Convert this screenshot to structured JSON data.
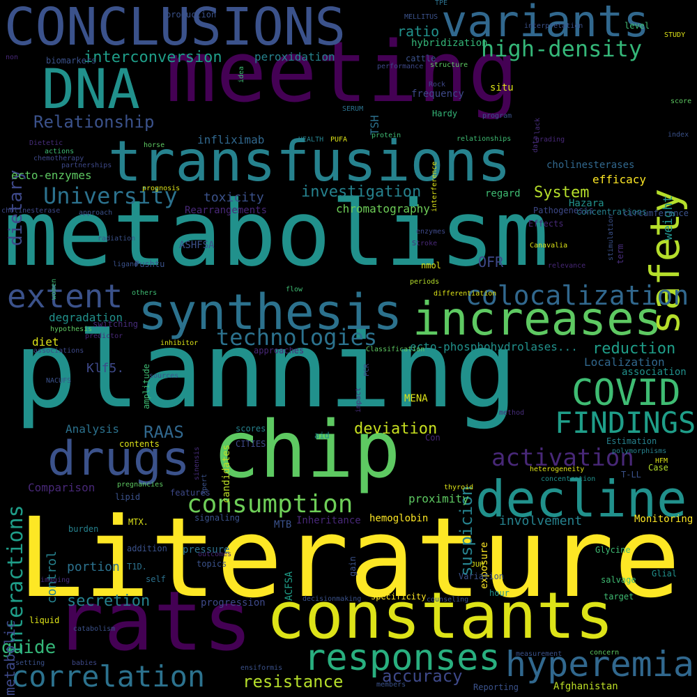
{
  "words": [
    {
      "text": "Literature",
      "color": "#fde725"
    },
    {
      "text": "planning",
      "color": "#21918c"
    },
    {
      "text": "metabolism",
      "color": "#21918c"
    },
    {
      "text": "meeting",
      "color": "#440154"
    },
    {
      "text": "chip",
      "color": "#5ec962"
    },
    {
      "text": "constants",
      "color": "#dde318"
    },
    {
      "text": "rats",
      "color": "#440154"
    },
    {
      "text": "transfusions",
      "color": "#26828e"
    },
    {
      "text": "increases",
      "color": "#5ec962"
    },
    {
      "text": "CONCLUSIONS",
      "color": "#3b528b"
    },
    {
      "text": "DNA",
      "color": "#21918c"
    },
    {
      "text": "decline",
      "color": "#21918c"
    },
    {
      "text": "synthesis",
      "color": "#2c728e"
    },
    {
      "text": "drugs",
      "color": "#3b528b"
    },
    {
      "text": "variants",
      "color": "#31688e"
    },
    {
      "text": "safety",
      "color": "#b5de2b"
    },
    {
      "text": "responses",
      "color": "#29af7f"
    },
    {
      "text": "hyperemia",
      "color": "#31688e"
    },
    {
      "text": "correlation",
      "color": "#2c728e"
    },
    {
      "text": "COVID",
      "color": "#3fbc73"
    },
    {
      "text": "FINDINGS",
      "color": "#1f9e89"
    },
    {
      "text": "extent",
      "color": "#3b528b"
    },
    {
      "text": "consumption",
      "color": "#6ece58"
    },
    {
      "text": "high-density",
      "color": "#35b779"
    },
    {
      "text": "colocalization",
      "color": "#31688e"
    },
    {
      "text": "activation",
      "color": "#482878"
    },
    {
      "text": "University",
      "color": "#2c728e"
    },
    {
      "text": "interactions",
      "color": "#1f9e89"
    },
    {
      "text": "technologies",
      "color": "#2c728e"
    },
    {
      "text": "dietary",
      "color": "#3e4989"
    },
    {
      "text": "Relationship",
      "color": "#3b528b"
    },
    {
      "text": "resistance",
      "color": "#b5de2b"
    },
    {
      "text": "accuracy",
      "color": "#3e4989"
    },
    {
      "text": "suspicion",
      "color": "#26828e"
    },
    {
      "text": "investigation",
      "color": "#26828e"
    },
    {
      "text": "interconversion",
      "color": "#1f9e89"
    },
    {
      "text": "secretion",
      "color": "#26828e"
    },
    {
      "text": "guide",
      "color": "#35b779"
    },
    {
      "text": "deviation",
      "color": "#c8e020"
    },
    {
      "text": "reduction",
      "color": "#1f9e89"
    },
    {
      "text": "System",
      "color": "#b5de2b"
    },
    {
      "text": "ratio",
      "color": "#21918c"
    },
    {
      "text": "involvement",
      "color": "#26828e"
    },
    {
      "text": "proximity",
      "color": "#5ec962"
    },
    {
      "text": "portion",
      "color": "#2c728e"
    },
    {
      "text": "RAAS",
      "color": "#31688e"
    },
    {
      "text": "weight",
      "color": "#21918c"
    },
    {
      "text": "metabolic",
      "color": "#3e4989"
    },
    {
      "text": "Localization",
      "color": "#31688e"
    },
    {
      "text": "Klf5.",
      "color": "#3e4989"
    },
    {
      "text": "OFR",
      "color": "#3e4989"
    },
    {
      "text": "degradation",
      "color": "#21918c"
    },
    {
      "text": "ecto-enzymes",
      "color": "#5ec962"
    },
    {
      "text": "toxicity",
      "color": "#3b528b"
    },
    {
      "text": "chromatography",
      "color": "#6ece58"
    },
    {
      "text": "hemoglobin",
      "color": "#fde725"
    },
    {
      "text": "Monitoring",
      "color": "#fde725"
    },
    {
      "text": "efficacy",
      "color": "#fde725"
    },
    {
      "text": "cholinesterases",
      "color": "#31688e"
    },
    {
      "text": "Hazara",
      "color": "#21918c"
    },
    {
      "text": "infliximab",
      "color": "#31688e"
    },
    {
      "text": "peroxidation",
      "color": "#26828e"
    },
    {
      "text": "frequency",
      "color": "#3e4989"
    },
    {
      "text": "ecto-phosphohydrolases...",
      "color": "#21918c"
    },
    {
      "text": "control",
      "color": "#26828e"
    },
    {
      "text": "Comparison",
      "color": "#482878"
    },
    {
      "text": "MENA",
      "color": "#dde318"
    },
    {
      "text": "diet",
      "color": "#dde318"
    },
    {
      "text": "Analysis",
      "color": "#2c728e"
    },
    {
      "text": "Afghanistan",
      "color": "#bddf26"
    },
    {
      "text": "candidates",
      "color": "#bddf26"
    },
    {
      "text": "TSH",
      "color": "#2c728e"
    },
    {
      "text": "pressure",
      "color": "#2c728e"
    },
    {
      "text": "association",
      "color": "#21918c"
    },
    {
      "text": "hybridization",
      "color": "#35b779"
    },
    {
      "text": "Rearrangements",
      "color": "#482878"
    },
    {
      "text": "regard",
      "color": "#3fbc73"
    },
    {
      "text": "situ",
      "color": "#dde318"
    },
    {
      "text": "Hardy",
      "color": "#35b779"
    },
    {
      "text": "progression",
      "color": "#3e4989"
    },
    {
      "text": "specificity",
      "color": "#fde725"
    },
    {
      "text": "ACFSA",
      "color": "#1f9e89"
    },
    {
      "text": "Estimation",
      "color": "#26828e"
    },
    {
      "text": "Inheritance",
      "color": "#482878"
    },
    {
      "text": "MTB",
      "color": "#3b528b"
    },
    {
      "text": "Case",
      "color": "#b5de2b"
    },
    {
      "text": "Glycine",
      "color": "#3fbc73"
    },
    {
      "text": "salvage",
      "color": "#3fbc73"
    },
    {
      "text": "target",
      "color": "#3fbc73"
    },
    {
      "text": "Reporting",
      "color": "#3b528b"
    },
    {
      "text": "exposure",
      "color": "#fde725"
    },
    {
      "text": "ASHFSA",
      "color": "#3b528b"
    },
    {
      "text": "concentrations",
      "color": "#26828e"
    },
    {
      "text": "Pathogenesis",
      "color": "#3e4989"
    },
    {
      "text": "Effects",
      "color": "#482878"
    },
    {
      "text": "circumference",
      "color": "#3b528b"
    },
    {
      "text": "term",
      "color": "#472d7b"
    },
    {
      "text": "Canavalia",
      "color": "#dde318"
    },
    {
      "text": "nmol",
      "color": "#dde318"
    },
    {
      "text": "Pushtu",
      "color": "#3b528b"
    },
    {
      "text": "Con",
      "color": "#482878"
    },
    {
      "text": "aid",
      "color": "#21918c"
    },
    {
      "text": "contents",
      "color": "#dde318"
    },
    {
      "text": "features",
      "color": "#3e4989"
    },
    {
      "text": "lipid",
      "color": "#3b528b"
    },
    {
      "text": "signaling",
      "color": "#3b528b"
    },
    {
      "text": "burden",
      "color": "#26828e"
    },
    {
      "text": "addition",
      "color": "#3b528b"
    },
    {
      "text": "T1D.",
      "color": "#2c728e"
    },
    {
      "text": "self",
      "color": "#2c728e"
    },
    {
      "text": "topics",
      "color": "#3b528b"
    },
    {
      "text": "outcomes",
      "color": "#482878"
    },
    {
      "text": "gain",
      "color": "#3b528b"
    },
    {
      "text": "JUH",
      "color": "#dde318"
    },
    {
      "text": "hour",
      "color": "#21918c"
    },
    {
      "text": "Variation",
      "color": "#3b528b"
    },
    {
      "text": "Glial",
      "color": "#21918c"
    },
    {
      "text": "HFM",
      "color": "#dde318"
    },
    {
      "text": "T-LL",
      "color": "#3b528b"
    },
    {
      "text": "polymorphisms",
      "color": "#26828e"
    },
    {
      "text": "heterogeneity",
      "color": "#dde318"
    },
    {
      "text": "concentration",
      "color": "#21918c"
    },
    {
      "text": "thyroid",
      "color": "#dde318"
    },
    {
      "text": "MTX.",
      "color": "#dde318"
    },
    {
      "text": "scores",
      "color": "#26828e"
    },
    {
      "text": "CITIES",
      "color": "#3e4989"
    },
    {
      "text": "sinensis",
      "color": "#472d7b"
    },
    {
      "text": "Xpert",
      "color": "#3b528b"
    },
    {
      "text": "pregnancies",
      "color": "#5ec962"
    },
    {
      "text": "sources",
      "color": "#3b528b"
    },
    {
      "text": "amplitude",
      "color": "#3fbc73"
    },
    {
      "text": "inhibitor",
      "color": "#dde318"
    },
    {
      "text": "switching",
      "color": "#472d7b"
    },
    {
      "text": "predictor",
      "color": "#482878"
    },
    {
      "text": "associations",
      "color": "#3e4989"
    },
    {
      "text": "hypothesis",
      "color": "#5ec962"
    },
    {
      "text": "others",
      "color": "#3fbc73"
    },
    {
      "text": "flow",
      "color": "#3fbc73"
    },
    {
      "text": "periods",
      "color": "#b5de2b"
    },
    {
      "text": "differentiation",
      "color": "#dde318"
    },
    {
      "text": "approaches",
      "color": "#482878"
    },
    {
      "text": "Classification",
      "color": "#5ec962"
    },
    {
      "text": "ligand",
      "color": "#3b528b"
    },
    {
      "text": "radiation",
      "color": "#3b528b"
    },
    {
      "text": "approach",
      "color": "#3b528b"
    },
    {
      "text": "cholinesterase",
      "color": "#3e4989"
    },
    {
      "text": "prognosis",
      "color": "#dde318"
    },
    {
      "text": "partnerships",
      "color": "#3e4989"
    },
    {
      "text": "chemotherapy",
      "color": "#3e4989"
    },
    {
      "text": "actions",
      "color": "#3fbc73"
    },
    {
      "text": "Dietetic",
      "color": "#472d7b"
    },
    {
      "text": "horse",
      "color": "#5ec962"
    },
    {
      "text": "biomarkers",
      "color": "#3b528b"
    },
    {
      "text": "non",
      "color": "#482878"
    },
    {
      "text": "idea",
      "color": "#3fbc73"
    },
    {
      "text": "performance",
      "color": "#3e4989"
    },
    {
      "text": "cattle",
      "color": "#3b528b"
    },
    {
      "text": "structure",
      "color": "#5ec962"
    },
    {
      "text": "Rock",
      "color": "#3e4989"
    },
    {
      "text": "SERUM",
      "color": "#2c728e"
    },
    {
      "text": "protein",
      "color": "#3fbc73"
    },
    {
      "text": "program",
      "color": "#3b528b"
    },
    {
      "text": "PUFA",
      "color": "#dde318"
    },
    {
      "text": "HEALTH",
      "color": "#26828e"
    },
    {
      "text": "interference",
      "color": "#dde318"
    },
    {
      "text": "relationships",
      "color": "#3fbc73"
    },
    {
      "text": "grading",
      "color": "#482878"
    },
    {
      "text": "lack",
      "color": "#472d7b"
    },
    {
      "text": "data",
      "color": "#472d7b"
    },
    {
      "text": "index",
      "color": "#3b528b"
    },
    {
      "text": "score",
      "color": "#5ec962"
    },
    {
      "text": "level",
      "color": "#3fbc73"
    },
    {
      "text": "interpretation",
      "color": "#3b528b"
    },
    {
      "text": "MELLITUS",
      "color": "#3b528b"
    },
    {
      "text": "TPE",
      "color": "#2c728e"
    },
    {
      "text": "production",
      "color": "#3b528b"
    },
    {
      "text": "STUDY",
      "color": "#dde318"
    },
    {
      "text": "enzymes",
      "color": "#3e4989"
    },
    {
      "text": "Stroke",
      "color": "#482878"
    },
    {
      "text": "stimulation",
      "color": "#3b528b"
    },
    {
      "text": "relevance",
      "color": "#482878"
    },
    {
      "text": "women",
      "color": "#3fbc73"
    },
    {
      "text": "NACUFS",
      "color": "#3b528b"
    },
    {
      "text": "impact",
      "color": "#472d7b"
    },
    {
      "text": "PCR",
      "color": "#3e4989"
    },
    {
      "text": "method",
      "color": "#472d7b"
    },
    {
      "text": "imaging",
      "color": "#472d7b"
    },
    {
      "text": "liquid",
      "color": "#dde318"
    },
    {
      "text": "catabolism",
      "color": "#3b528b"
    },
    {
      "text": "setting",
      "color": "#3b528b"
    },
    {
      "text": "babies",
      "color": "#3e4989"
    },
    {
      "text": "ensiformis",
      "color": "#3b528b"
    },
    {
      "text": "decisionmaking",
      "color": "#3b528b"
    },
    {
      "text": "counseling",
      "color": "#3b528b"
    },
    {
      "text": "members",
      "color": "#3b528b"
    },
    {
      "text": "measurement",
      "color": "#3b528b"
    },
    {
      "text": "concern",
      "color": "#5ec962"
    }
  ]
}
